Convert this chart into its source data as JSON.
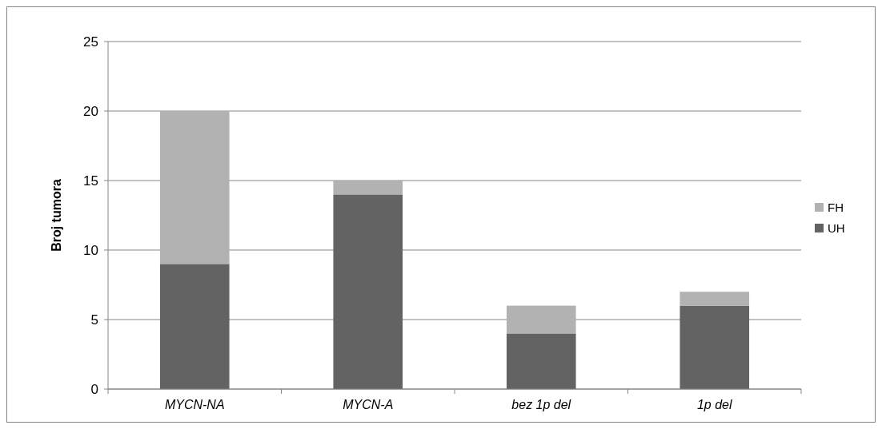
{
  "chart_data": {
    "type": "bar",
    "stacked": true,
    "ylabel": "Broj tumora",
    "categories": [
      "MYCN-NA",
      "MYCN-A",
      "bez 1p del",
      "1p del"
    ],
    "series": [
      {
        "name": "UH",
        "color": "#636363",
        "values": [
          9,
          14,
          4,
          6
        ]
      },
      {
        "name": "FH",
        "color": "#b2b2b2",
        "values": [
          11,
          1,
          2,
          1
        ]
      }
    ],
    "ylim": [
      0,
      25
    ],
    "yticks": [
      0,
      5,
      10,
      15,
      20,
      25
    ],
    "grid": "y",
    "legend": "right"
  }
}
